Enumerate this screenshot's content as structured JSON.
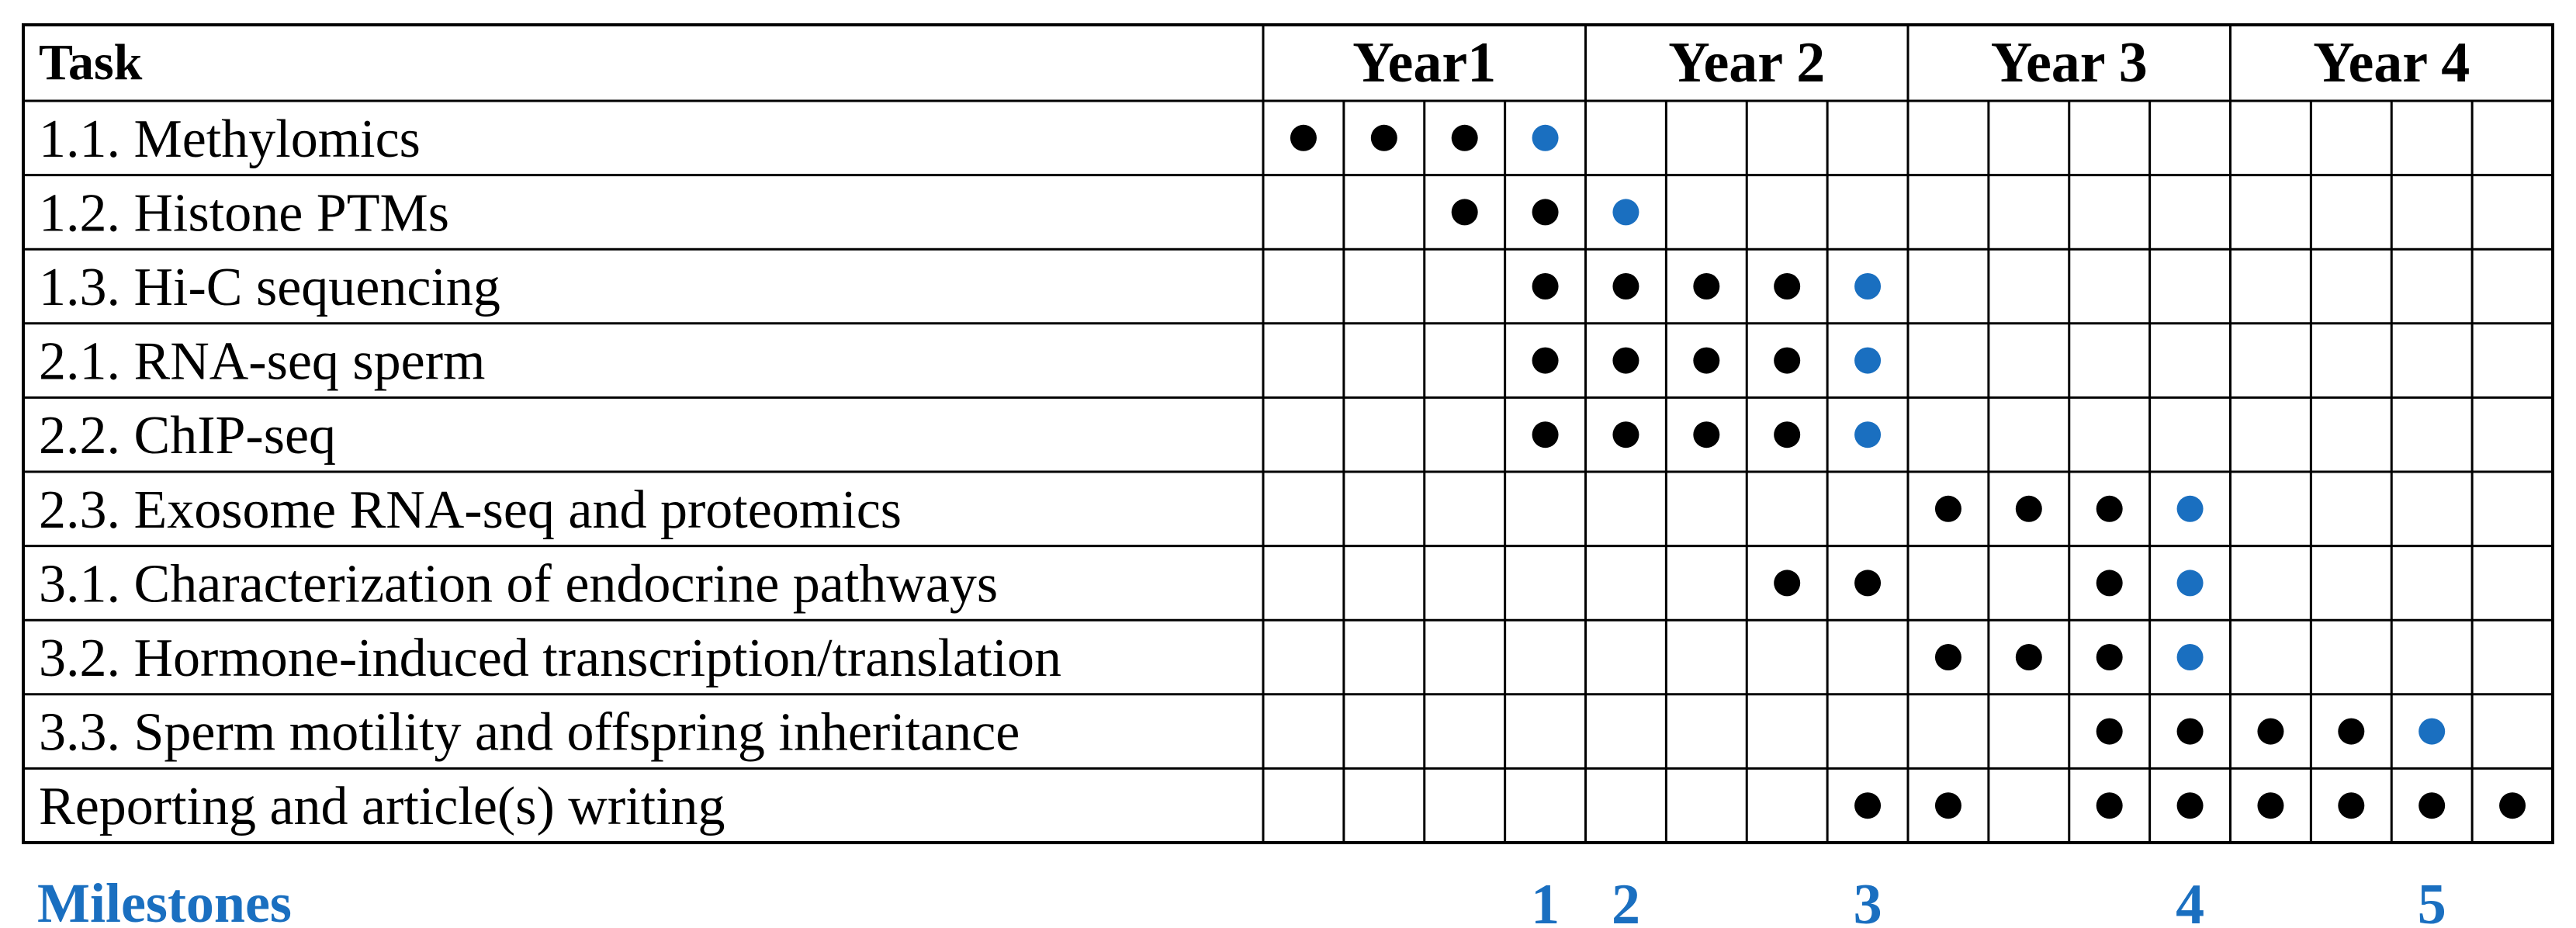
{
  "chart_data": {
    "type": "table",
    "header": {
      "task_label": "Task",
      "years": [
        "Year1",
        "Year 2",
        "Year 3",
        "Year 4"
      ],
      "quarters_per_year": 4
    },
    "tasks": [
      {
        "name": "1.1. Methylomics",
        "activity": [
          1,
          2,
          3
        ],
        "milestone": [
          4
        ]
      },
      {
        "name": "1.2. Histone PTMs",
        "activity": [
          3,
          4
        ],
        "milestone": [
          5
        ]
      },
      {
        "name": "1.3. Hi-C sequencing",
        "activity": [
          4,
          5,
          6,
          7
        ],
        "milestone": [
          8
        ]
      },
      {
        "name": "2.1. RNA-seq sperm",
        "activity": [
          4,
          5,
          6,
          7
        ],
        "milestone": [
          8
        ]
      },
      {
        "name": "2.2. ChIP-seq",
        "activity": [
          4,
          5,
          6,
          7
        ],
        "milestone": [
          8
        ]
      },
      {
        "name": "2.3. Exosome RNA-seq and proteomics",
        "activity": [
          9,
          10,
          11
        ],
        "milestone": [
          12
        ]
      },
      {
        "name": "3.1. Characterization of endocrine pathways",
        "activity": [
          7,
          8,
          11
        ],
        "milestone": [
          12
        ]
      },
      {
        "name": "3.2. Hormone-induced transcription/translation",
        "activity": [
          9,
          10,
          11
        ],
        "milestone": [
          12
        ]
      },
      {
        "name": "3.3. Sperm motility and offspring inheritance",
        "activity": [
          11,
          12,
          13,
          14
        ],
        "milestone": [
          15
        ]
      },
      {
        "name": "Reporting and article(s) writing",
        "activity": [
          8,
          9,
          11,
          12,
          13,
          14,
          15,
          16
        ],
        "milestone": []
      }
    ],
    "milestones": {
      "label": "Milestones",
      "items": [
        {
          "number": "1",
          "quarter": 4
        },
        {
          "number": "2",
          "quarter": 5
        },
        {
          "number": "3",
          "quarter": 8
        },
        {
          "number": "4",
          "quarter": 12
        },
        {
          "number": "5",
          "quarter": 15
        }
      ]
    },
    "colors": {
      "grid": "#000000",
      "activity_dot": "#000000",
      "milestone_dot": "#1a6fc0",
      "milestone_text": "#1a6fc0"
    }
  }
}
